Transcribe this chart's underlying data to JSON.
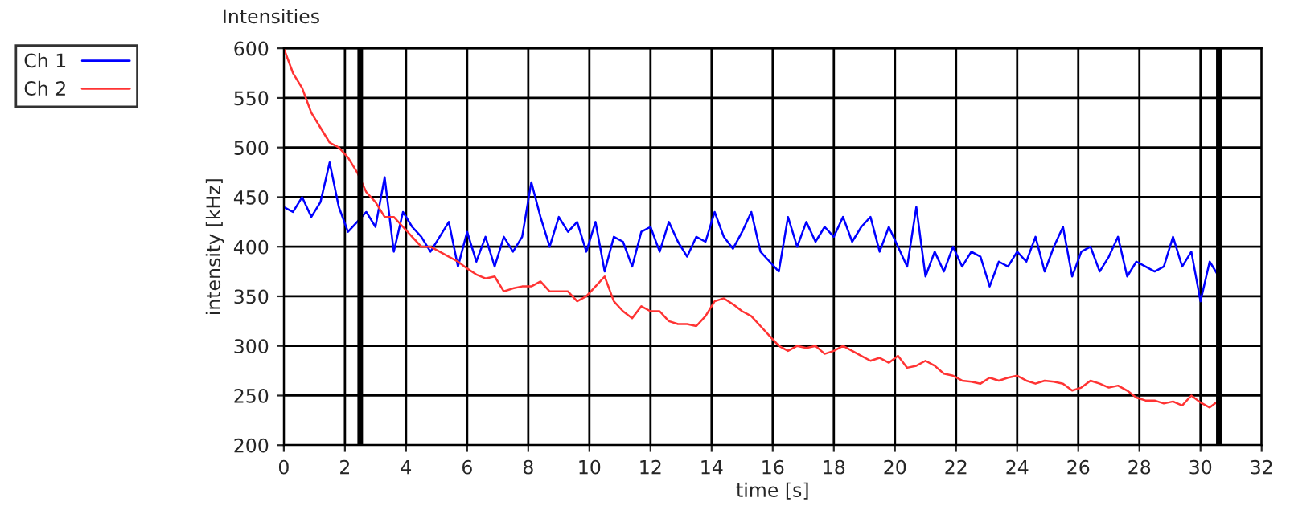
{
  "chart_data": {
    "type": "line",
    "title": "Intensities",
    "xlabel": "time [s]",
    "ylabel": "intensity [kHz]",
    "xlim": [
      0,
      32
    ],
    "xticks": [
      0,
      2,
      4,
      6,
      8,
      10,
      12,
      14,
      16,
      18,
      20,
      22,
      24,
      26,
      28,
      30,
      32
    ],
    "ylim": [
      200,
      600
    ],
    "yticks": [
      200,
      250,
      300,
      350,
      400,
      450,
      500,
      550,
      600
    ],
    "grid": true,
    "legend": "top left",
    "line_style": "solid",
    "marker": "none",
    "ref_lines": [
      {
        "axis": "x",
        "value": 2.5,
        "color": "#000000"
      },
      {
        "axis": "x",
        "value": 30.6,
        "color": "#000000"
      }
    ],
    "series": [
      {
        "name": "Ch 1",
        "color": "#0000ff",
        "x": [
          0,
          0.3,
          0.6,
          0.9,
          1.2,
          1.5,
          1.8,
          2.1,
          2.4,
          2.7,
          3.0,
          3.3,
          3.6,
          3.9,
          4.2,
          4.5,
          4.8,
          5.1,
          5.4,
          5.7,
          6.0,
          6.3,
          6.6,
          6.9,
          7.2,
          7.5,
          7.8,
          8.1,
          8.4,
          8.7,
          9.0,
          9.3,
          9.6,
          9.9,
          10.2,
          10.5,
          10.8,
          11.1,
          11.4,
          11.7,
          12.0,
          12.3,
          12.6,
          12.9,
          13.2,
          13.5,
          13.8,
          14.1,
          14.4,
          14.7,
          15.0,
          15.3,
          15.6,
          15.9,
          16.2,
          16.5,
          16.8,
          17.1,
          17.4,
          17.7,
          18.0,
          18.3,
          18.6,
          18.9,
          19.2,
          19.5,
          19.8,
          20.1,
          20.4,
          20.7,
          21.0,
          21.3,
          21.6,
          21.9,
          22.2,
          22.5,
          22.8,
          23.1,
          23.4,
          23.7,
          24.0,
          24.3,
          24.6,
          24.9,
          25.2,
          25.5,
          25.8,
          26.1,
          26.4,
          26.7,
          27.0,
          27.3,
          27.6,
          27.9,
          28.2,
          28.5,
          28.8,
          29.1,
          29.4,
          29.7,
          30.0,
          30.3,
          30.6
        ],
        "values": [
          440,
          435,
          450,
          430,
          445,
          485,
          440,
          415,
          425,
          435,
          420,
          470,
          395,
          435,
          420,
          410,
          395,
          410,
          425,
          380,
          415,
          385,
          410,
          380,
          410,
          395,
          410,
          465,
          430,
          400,
          430,
          415,
          425,
          395,
          425,
          375,
          410,
          405,
          380,
          415,
          420,
          395,
          425,
          405,
          390,
          410,
          405,
          435,
          410,
          398,
          415,
          435,
          395,
          385,
          375,
          430,
          400,
          425,
          405,
          420,
          410,
          430,
          405,
          420,
          430,
          395,
          420,
          400,
          380,
          440,
          370,
          395,
          375,
          400,
          380,
          395,
          390,
          360,
          385,
          380,
          395,
          385,
          410,
          375,
          400,
          420,
          370,
          395,
          400,
          375,
          390,
          410,
          370,
          385,
          380,
          375,
          380,
          410,
          380,
          395,
          345,
          385,
          370
        ]
      },
      {
        "name": "Ch 2",
        "color": "#ff3333",
        "x": [
          0,
          0.3,
          0.6,
          0.9,
          1.2,
          1.5,
          1.8,
          2.1,
          2.4,
          2.7,
          3.0,
          3.3,
          3.6,
          3.9,
          4.2,
          4.5,
          4.8,
          5.1,
          5.4,
          5.7,
          6.0,
          6.3,
          6.6,
          6.9,
          7.2,
          7.5,
          7.8,
          8.1,
          8.4,
          8.7,
          9.0,
          9.3,
          9.6,
          9.9,
          10.2,
          10.5,
          10.8,
          11.1,
          11.4,
          11.7,
          12.0,
          12.3,
          12.6,
          12.9,
          13.2,
          13.5,
          13.8,
          14.1,
          14.4,
          14.7,
          15.0,
          15.3,
          15.6,
          15.9,
          16.2,
          16.5,
          16.8,
          17.1,
          17.4,
          17.7,
          18.0,
          18.3,
          18.6,
          18.9,
          19.2,
          19.5,
          19.8,
          20.1,
          20.4,
          20.7,
          21.0,
          21.3,
          21.6,
          21.9,
          22.2,
          22.5,
          22.8,
          23.1,
          23.4,
          23.7,
          24.0,
          24.3,
          24.6,
          24.9,
          25.2,
          25.5,
          25.8,
          26.1,
          26.4,
          26.7,
          27.0,
          27.3,
          27.6,
          27.9,
          28.2,
          28.5,
          28.8,
          29.1,
          29.4,
          29.7,
          30.0,
          30.3,
          30.6
        ],
        "values": [
          600,
          575,
          560,
          535,
          520,
          505,
          500,
          490,
          475,
          455,
          445,
          430,
          430,
          420,
          410,
          400,
          400,
          395,
          390,
          385,
          378,
          372,
          368,
          370,
          355,
          358,
          360,
          360,
          365,
          355,
          355,
          355,
          345,
          350,
          360,
          370,
          345,
          335,
          328,
          340,
          335,
          335,
          325,
          322,
          322,
          320,
          330,
          345,
          348,
          342,
          335,
          330,
          320,
          310,
          300,
          295,
          300,
          298,
          300,
          292,
          295,
          300,
          295,
          290,
          285,
          288,
          283,
          290,
          278,
          280,
          285,
          280,
          272,
          270,
          265,
          264,
          262,
          268,
          265,
          268,
          270,
          265,
          262,
          265,
          264,
          262,
          255,
          258,
          265,
          262,
          258,
          260,
          255,
          248,
          245,
          245,
          242,
          244,
          240,
          250,
          243,
          238,
          245
        ]
      }
    ]
  }
}
